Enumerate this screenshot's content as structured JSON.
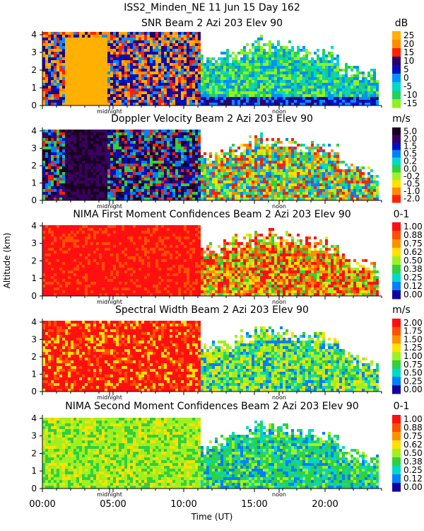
{
  "figure": {
    "title": "ISS2_Minden_NE   11 Jun 15 Day 162",
    "xlabel": "Time (UT)",
    "ylabel": "Altitude (km)",
    "x_ticks": [
      0,
      5,
      10,
      15,
      20
    ],
    "x_tick_labels": [
      "00:00",
      "05:00",
      "10:00",
      "15:00",
      "20:00"
    ],
    "xlim": [
      0,
      24
    ],
    "ylim": [
      0,
      4.2
    ],
    "y_ticks": [
      0,
      1,
      2,
      3,
      4
    ],
    "y_tick_labels": [
      "0",
      "1",
      "2",
      "3",
      "4"
    ],
    "markers": [
      {
        "label": "midnight",
        "time": 4.75
      },
      {
        "label": "noon",
        "time": 16.75
      }
    ]
  },
  "chart_data": [
    {
      "type": "heatmap",
      "title": "SNR Beam 2 Azi 203 Elev 90",
      "unit": "dB",
      "colorbar_labels": [
        "25",
        "20",
        "15",
        "10",
        "5",
        "0",
        "-5",
        "-10",
        "-15"
      ],
      "colorbar_colors": [
        "#ffb000",
        "#ff8c00",
        "#ff2000",
        "#2a006a",
        "#0010c0",
        "#0090ff",
        "#00d8c8",
        "#20d060",
        "#90f020"
      ],
      "ylim": [
        0,
        4.2
      ],
      "xlim": [
        0,
        24
      ]
    },
    {
      "type": "heatmap",
      "title": "Doppler Velocity Beam 2 Azi 203 Elev 90",
      "unit": "m/s",
      "colorbar_labels": [
        "5.0",
        "2.0",
        "1.5",
        "0.5",
        "0.2",
        "0.0",
        "-0.2",
        "-0.5",
        "-1.0",
        "-2.0"
      ],
      "colorbar_colors": [
        "#1a0022",
        "#3a0060",
        "#0010c0",
        "#0080ff",
        "#00d8c8",
        "#30d040",
        "#a0f020",
        "#ffe000",
        "#ff8c00",
        "#ff2000"
      ],
      "ylim": [
        0,
        4.2
      ],
      "xlim": [
        0,
        24
      ]
    },
    {
      "type": "heatmap",
      "title": "NIMA First Moment Confidences Beam 2 Azi 203 Elev 90",
      "unit": "0-1",
      "colorbar_labels": [
        "1.00",
        "0.88",
        "0.75",
        "0.62",
        "0.50",
        "0.38",
        "0.25",
        "0.12",
        "0.00"
      ],
      "colorbar_colors": [
        "#ff1010",
        "#ff5000",
        "#ff9000",
        "#ffe000",
        "#a0f020",
        "#30d040",
        "#00d8c8",
        "#0080ff",
        "#1000a0"
      ],
      "ylim": [
        0,
        4.2
      ],
      "xlim": [
        0,
        24
      ]
    },
    {
      "type": "heatmap",
      "title": "Spectral Width Beam 2 Azi 203 Elev 90",
      "unit": "m/s",
      "colorbar_labels": [
        "2.00",
        "1.75",
        "1.50",
        "1.25",
        "1.00",
        "0.75",
        "0.50",
        "0.25",
        "0.00"
      ],
      "colorbar_colors": [
        "#ff1010",
        "#ff5000",
        "#ff9000",
        "#ffe000",
        "#a0f020",
        "#30d040",
        "#00d8c8",
        "#0080ff",
        "#1000a0"
      ],
      "ylim": [
        0,
        4.2
      ],
      "xlim": [
        0,
        24
      ]
    },
    {
      "type": "heatmap",
      "title": "NIMA Second Moment Confidences Beam 2 Azi 203 Elev 90",
      "unit": "0-1",
      "colorbar_labels": [
        "1.00",
        "0.88",
        "0.75",
        "0.62",
        "0.50",
        "0.38",
        "0.25",
        "0.12",
        "0.00"
      ],
      "colorbar_colors": [
        "#ff1010",
        "#ff5000",
        "#ff9000",
        "#ffe000",
        "#a0f020",
        "#30d040",
        "#00d8c8",
        "#0080ff",
        "#1000a0"
      ],
      "ylim": [
        0,
        4.2
      ],
      "xlim": [
        0,
        24
      ]
    }
  ]
}
